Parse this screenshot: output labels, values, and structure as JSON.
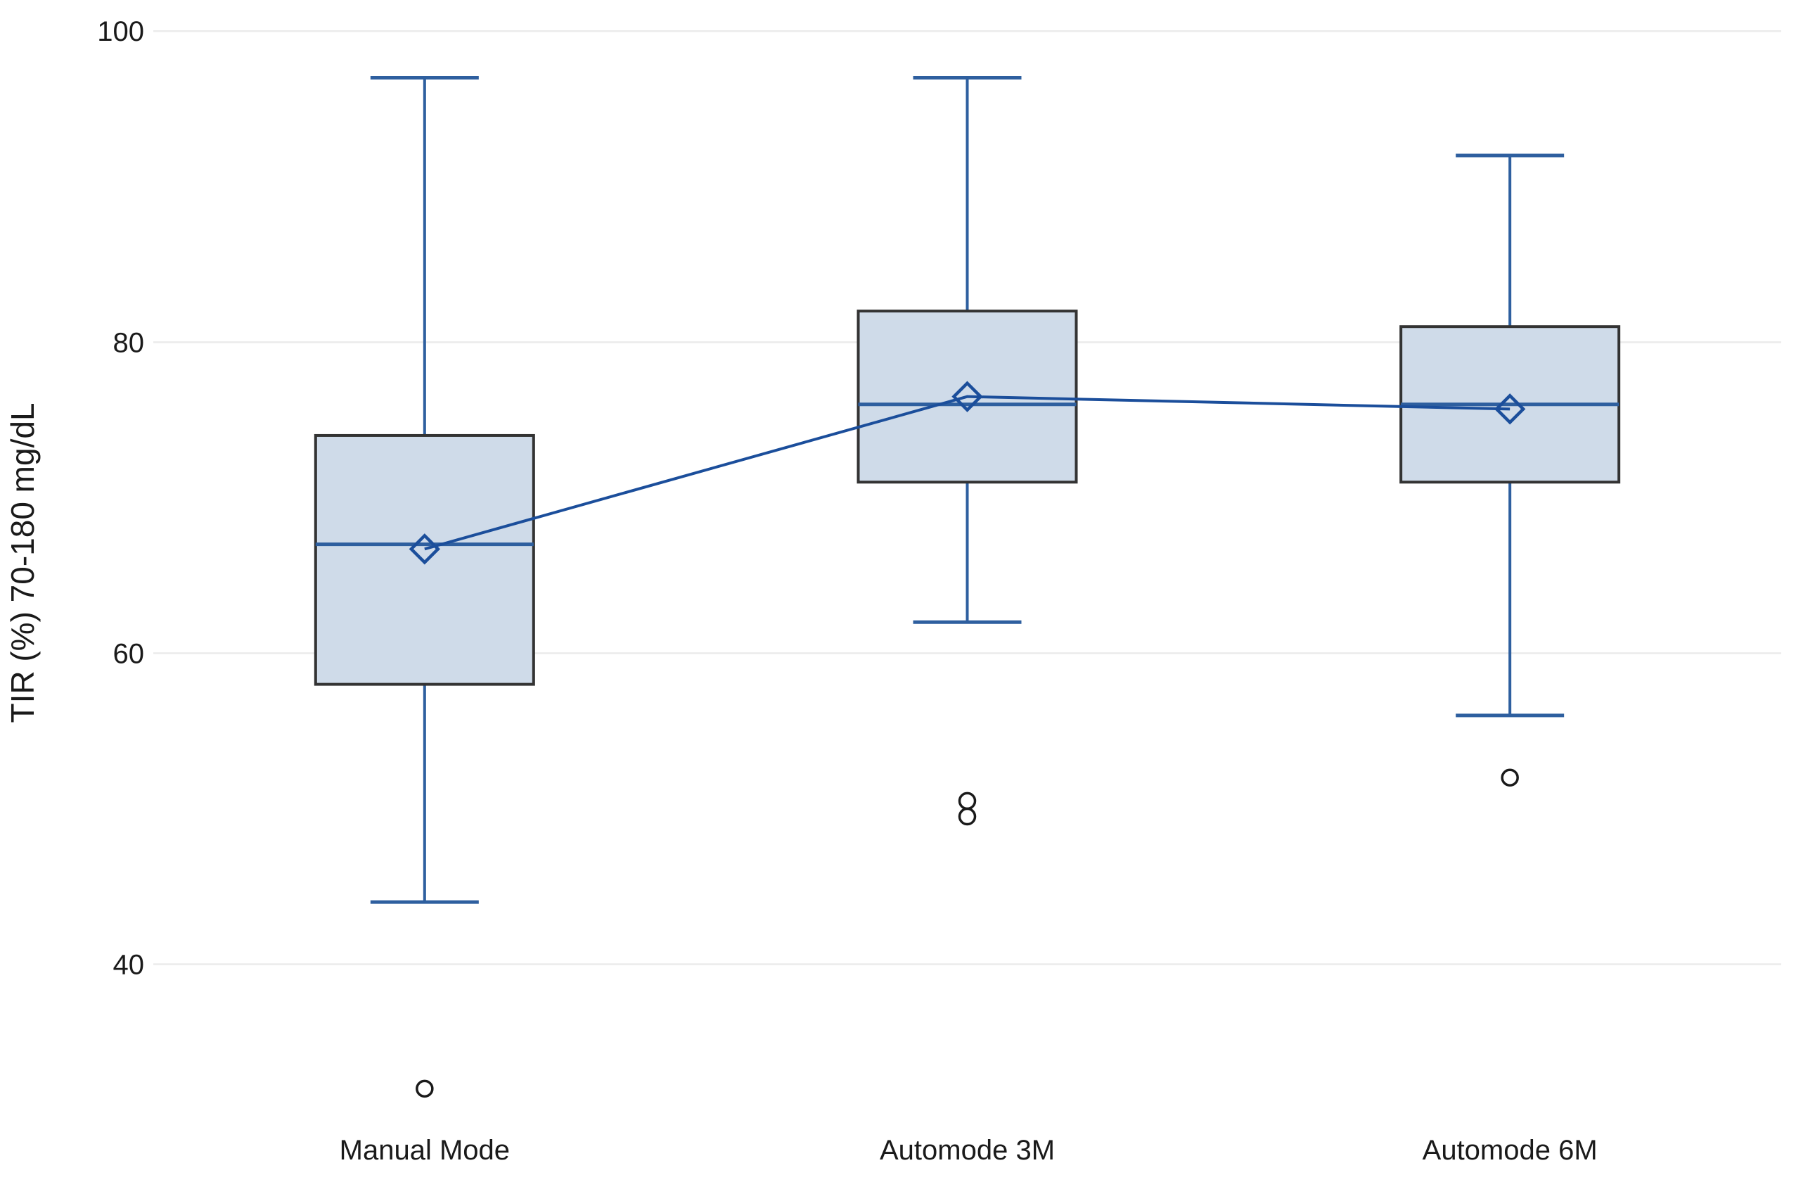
{
  "chart_data": {
    "type": "box",
    "title": "",
    "xlabel": "",
    "ylabel": "TIR (%) 70-180 mg/dL",
    "categories": [
      "Manual Mode",
      "Automode 3M",
      "Automode 6M"
    ],
    "yticks": [
      40,
      60,
      80,
      100
    ],
    "ylim": [
      26,
      102
    ],
    "grid": true,
    "legend": false,
    "mean_line_connecting_groups": true,
    "series": [
      {
        "name": "Manual Mode",
        "min": 44,
        "q1": 58,
        "median": 67,
        "q3": 74,
        "max": 97,
        "mean": 66.7,
        "outliers": [
          32
        ]
      },
      {
        "name": "Automode 3M",
        "min": 62,
        "q1": 71,
        "median": 76,
        "q3": 82,
        "max": 97,
        "mean": 76.5,
        "outliers": [
          50.5,
          49.5
        ]
      },
      {
        "name": "Automode 6M",
        "min": 56,
        "q1": 71,
        "median": 76,
        "q3": 81,
        "max": 92,
        "mean": 75.7,
        "outliers": [
          52
        ]
      }
    ],
    "colors": {
      "background": "#ffffff",
      "gridline": "#ebebeb",
      "box_fill": "#cfdbe9",
      "box_border": "#333333",
      "whisker": "#2e5f9f",
      "median": "#2e5f9f",
      "mean": "#1b4e9b",
      "outlier": "#1a1a1a",
      "text": "#1a1a1a"
    }
  }
}
